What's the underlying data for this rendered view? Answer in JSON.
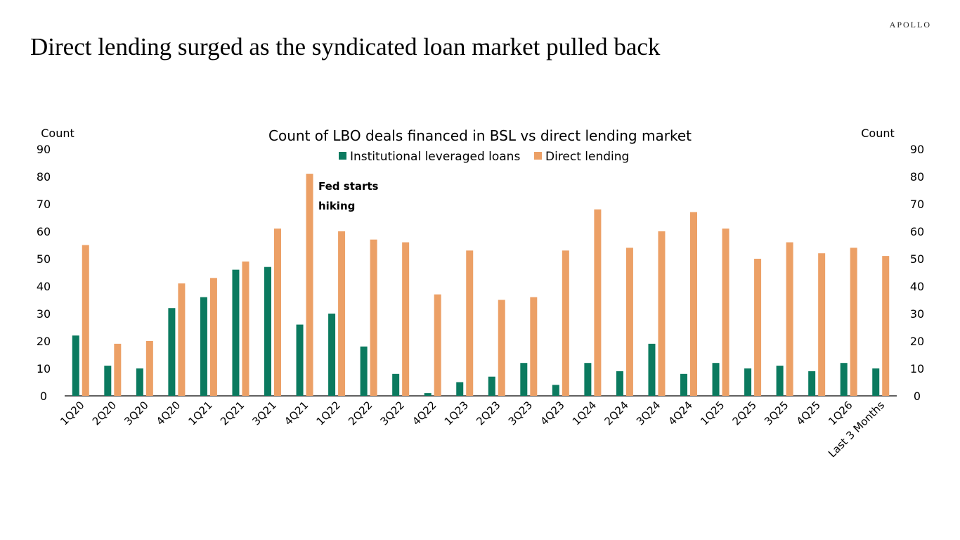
{
  "brand": "APOLLO",
  "headline": "Direct lending surged as the syndicated loan market pulled back",
  "colors": {
    "institutional": "#0b7a5f",
    "direct": "#eca066",
    "axis": "#000000"
  },
  "chart_data": {
    "type": "bar",
    "title": "Count of LBO deals financed in BSL vs direct lending market",
    "ylabel_left": "Count",
    "ylabel_right": "Count",
    "ylim": [
      0,
      90
    ],
    "yticks": [
      0,
      10,
      20,
      30,
      40,
      50,
      60,
      70,
      80,
      90
    ],
    "legend_position": "top-center",
    "grid": false,
    "categories": [
      "1Q20",
      "2Q20",
      "3Q20",
      "4Q20",
      "1Q21",
      "2Q21",
      "3Q21",
      "4Q21",
      "1Q22",
      "2Q22",
      "3Q22",
      "4Q22",
      "1Q23",
      "2Q23",
      "3Q23",
      "4Q23",
      "1Q24",
      "2Q24",
      "3Q24",
      "4Q24",
      "1Q25",
      "2Q25",
      "3Q25",
      "4Q25",
      "1Q26",
      "Last 3 Months"
    ],
    "series": [
      {
        "name": "Institutional leveraged loans",
        "color": "#0b7a5f",
        "values": [
          22,
          11,
          10,
          32,
          36,
          46,
          47,
          26,
          30,
          18,
          8,
          1,
          5,
          7,
          12,
          4,
          12,
          9,
          19,
          8,
          12,
          10,
          11,
          9,
          12,
          10
        ]
      },
      {
        "name": "Direct lending",
        "color": "#eca066",
        "values": [
          55,
          19,
          20,
          41,
          43,
          49,
          61,
          81,
          60,
          57,
          56,
          37,
          53,
          35,
          36,
          53,
          68,
          54,
          60,
          67,
          61,
          50,
          56,
          52,
          54,
          51
        ]
      }
    ],
    "annotation": {
      "lines": [
        "Fed starts",
        "hiking"
      ],
      "category": "4Q21"
    }
  }
}
